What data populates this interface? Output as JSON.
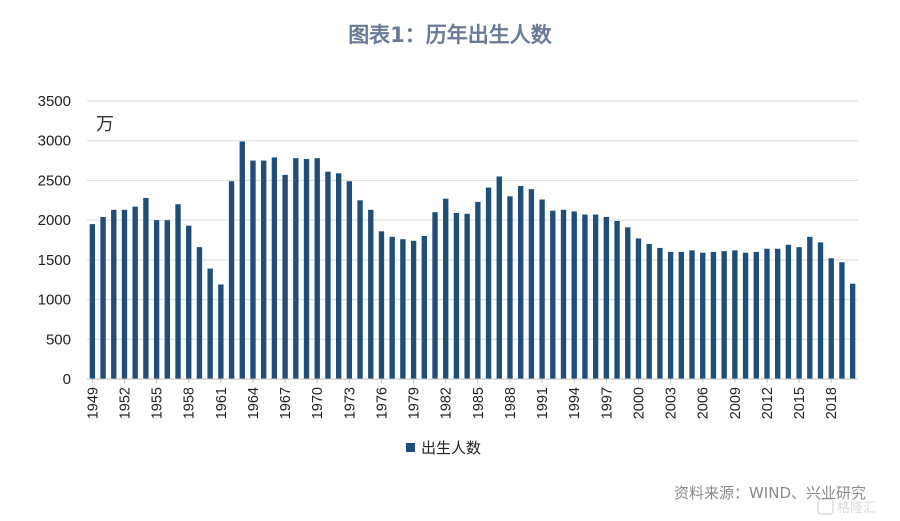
{
  "chart_data": {
    "type": "bar",
    "title": "图表1：历年出生人数",
    "unit_label": "万",
    "ylim": [
      0,
      3500
    ],
    "yticks": [
      0,
      500,
      1000,
      1500,
      2000,
      2500,
      3000,
      3500
    ],
    "grid": true,
    "legend_position": "bottom",
    "x_tick_labels": [
      "1949",
      "1952",
      "1955",
      "1958",
      "1961",
      "1964",
      "1967",
      "1970",
      "1973",
      "1976",
      "1979",
      "1982",
      "1985",
      "1988",
      "1991",
      "1994",
      "1997",
      "2000",
      "2003",
      "2006",
      "2009",
      "2012",
      "2015",
      "2018"
    ],
    "categories": [
      1949,
      1950,
      1951,
      1952,
      1953,
      1954,
      1955,
      1956,
      1957,
      1958,
      1959,
      1960,
      1961,
      1962,
      1963,
      1964,
      1965,
      1966,
      1967,
      1968,
      1969,
      1970,
      1971,
      1972,
      1973,
      1974,
      1975,
      1976,
      1977,
      1978,
      1979,
      1980,
      1981,
      1982,
      1983,
      1984,
      1985,
      1986,
      1987,
      1988,
      1989,
      1990,
      1991,
      1992,
      1993,
      1994,
      1995,
      1996,
      1997,
      1998,
      1999,
      2000,
      2001,
      2002,
      2003,
      2004,
      2005,
      2006,
      2007,
      2008,
      2009,
      2010,
      2011,
      2012,
      2013,
      2014,
      2015,
      2016,
      2017,
      2018,
      2019,
      2020
    ],
    "series": [
      {
        "name": "出生人数",
        "color": "#1f4e79",
        "values": [
          1950,
          2040,
          2130,
          2130,
          2170,
          2280,
          2000,
          2000,
          2200,
          1930,
          1660,
          1390,
          1190,
          2490,
          2990,
          2750,
          2750,
          2790,
          2570,
          2780,
          2770,
          2780,
          2610,
          2590,
          2490,
          2250,
          2130,
          1860,
          1790,
          1760,
          1740,
          1800,
          2100,
          2270,
          2090,
          2080,
          2230,
          2410,
          2550,
          2300,
          2430,
          2390,
          2260,
          2120,
          2130,
          2110,
          2070,
          2070,
          2040,
          1990,
          1910,
          1770,
          1700,
          1650,
          1600,
          1600,
          1620,
          1590,
          1600,
          1610,
          1620,
          1590,
          1600,
          1640,
          1640,
          1690,
          1660,
          1790,
          1720,
          1520,
          1470,
          1200
        ]
      }
    ],
    "source": "资料来源：WIND、兴业研究",
    "watermark": "格隆汇"
  }
}
